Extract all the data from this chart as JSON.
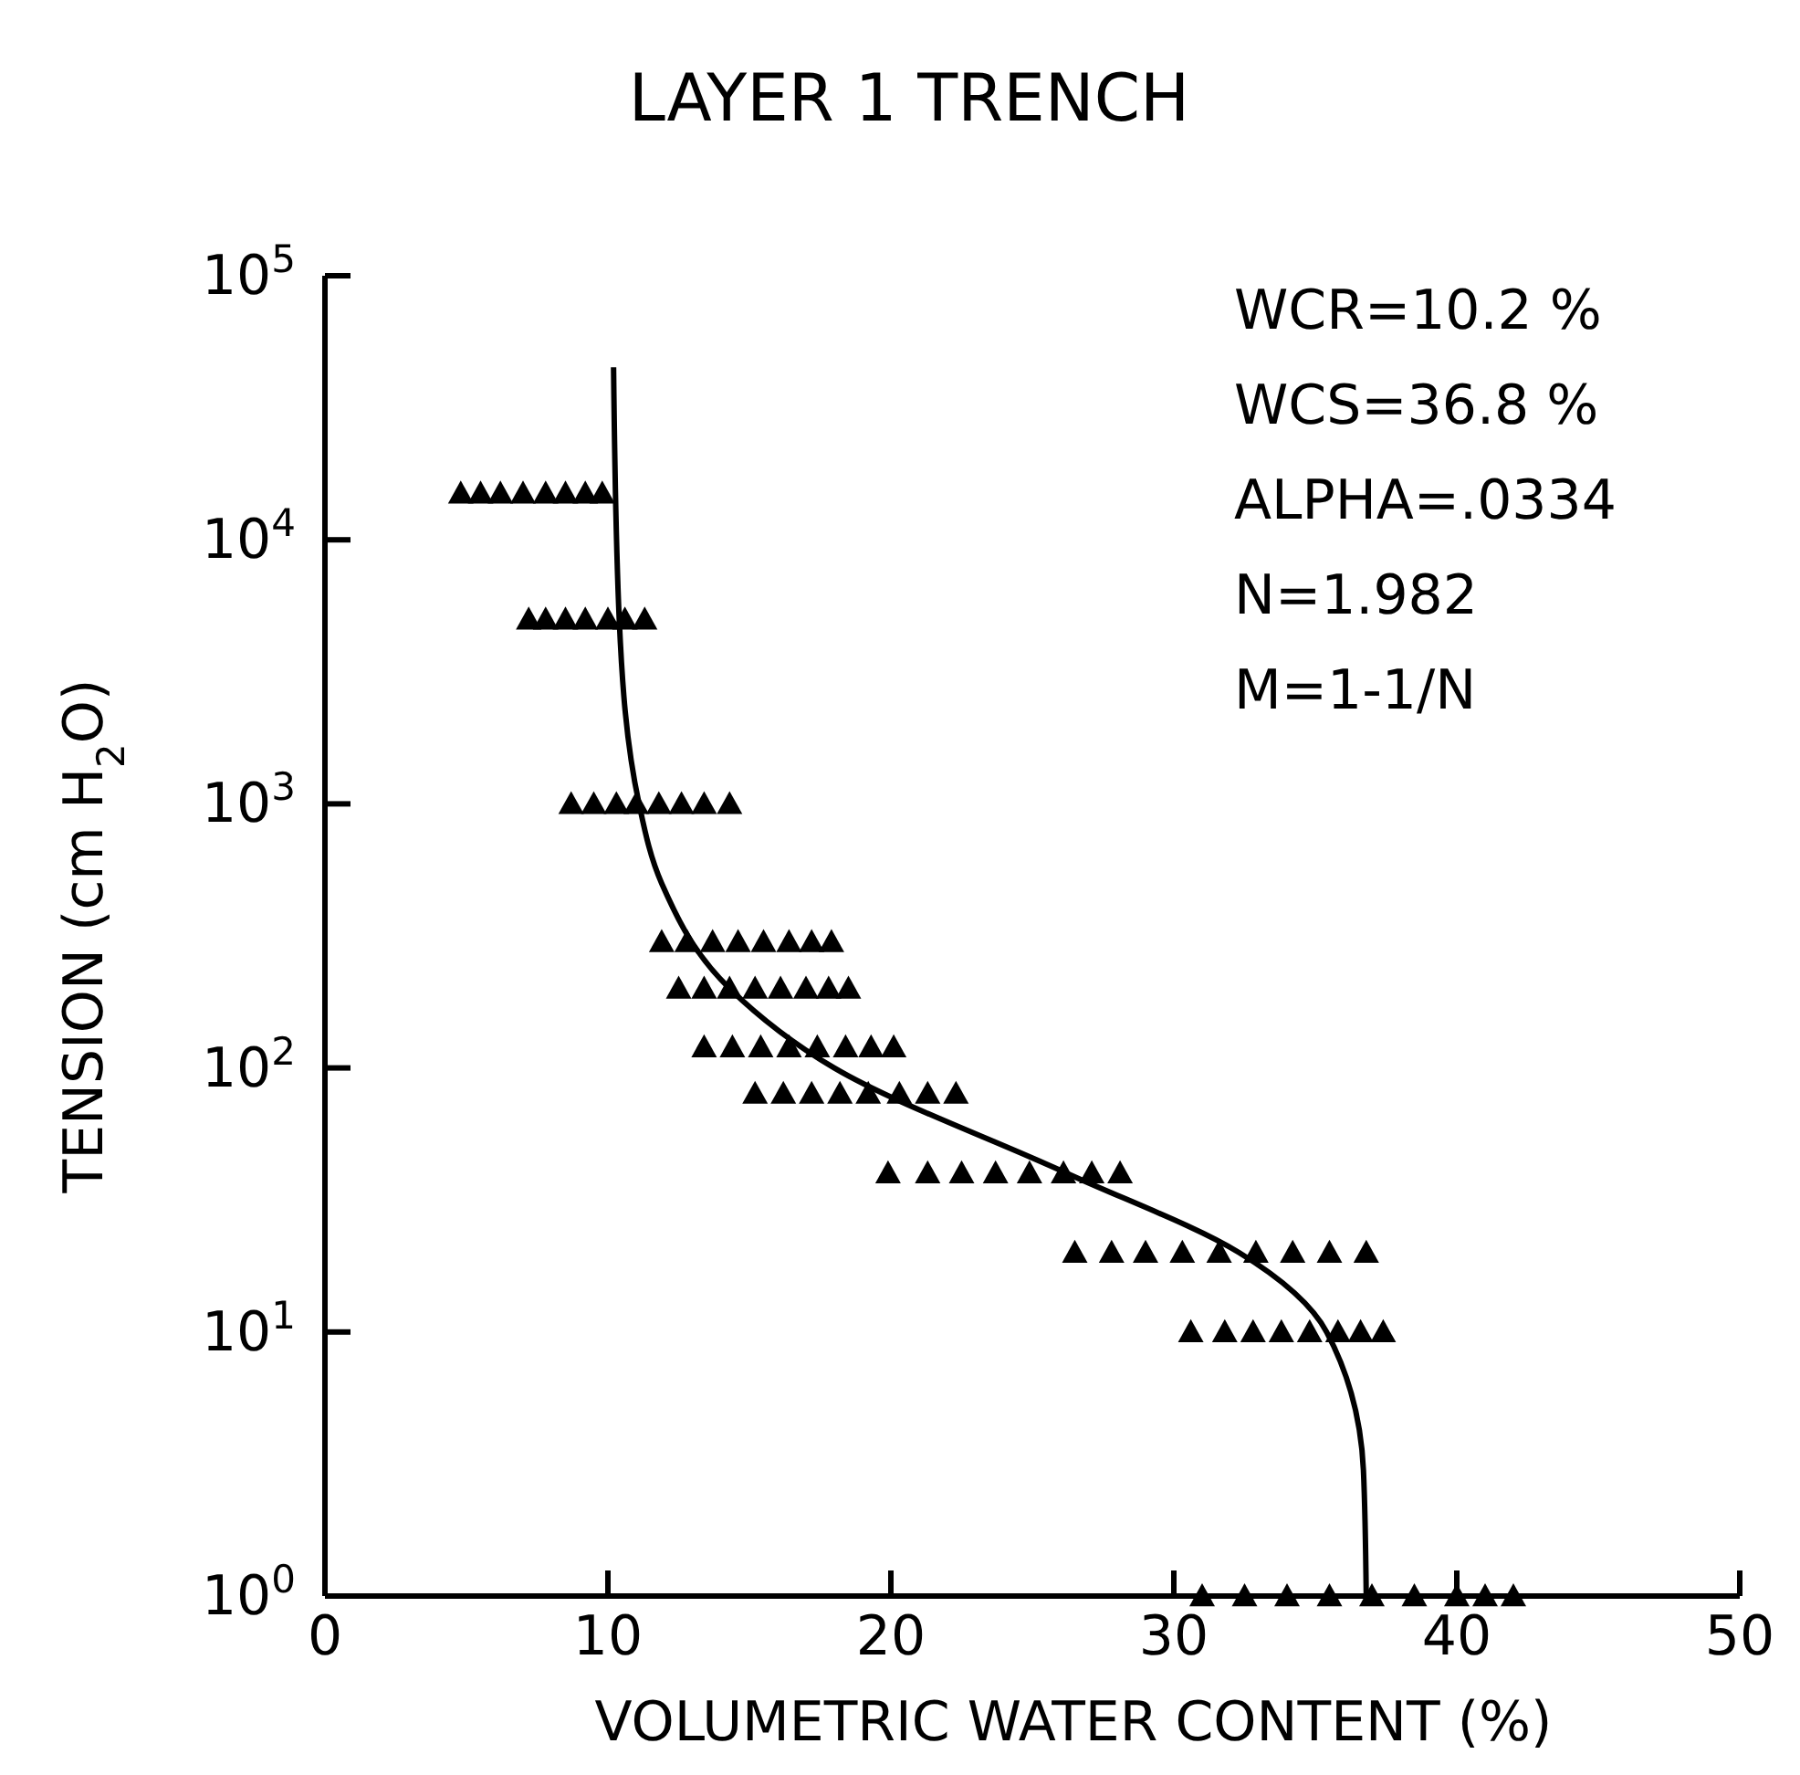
{
  "chart_data": {
    "type": "scatter",
    "title": "LAYER 1 TRENCH",
    "xlabel": "VOLUMETRIC WATER CONTENT (%)",
    "ylabel": "TENSION (cm H$_{2}$O)",
    "log": "y",
    "grid": false,
    "marker": "triangle",
    "xlim": [
      0,
      50
    ],
    "xticks": [
      0,
      10,
      20,
      30,
      40,
      50
    ],
    "ylim": [
      1,
      100000
    ],
    "yticks": [
      {
        "value": 1,
        "label": "10$^{0}$"
      },
      {
        "value": 10,
        "label": "10$^{1}$"
      },
      {
        "value": 100,
        "label": "10$^{2}$"
      },
      {
        "value": 1000,
        "label": "10$^{3}$"
      },
      {
        "value": 10000,
        "label": "10$^{4}$"
      },
      {
        "value": 100000,
        "label": "10$^{5}$"
      }
    ],
    "annotations": [
      "WCR=10.2 %",
      "WCS=36.8 %",
      "ALPHA=.0334",
      "N=1.982",
      "M=1-1/N"
    ],
    "series": [
      {
        "color": "#000000",
        "x": [
          4.8,
          5.5,
          6.2,
          7,
          7.8,
          8.5,
          9.2,
          9.8,
          7.2,
          7.8,
          8.5,
          9.2,
          10,
          10.6,
          11.3,
          8.7,
          9.5,
          10.3,
          11,
          11.8,
          12.6,
          13.4,
          14.3,
          11.9,
          12.8,
          13.7,
          14.6,
          15.5,
          16.4,
          17.2,
          17.9,
          12.5,
          13.4,
          14.3,
          15.2,
          16.1,
          17,
          17.8,
          18.5,
          13.4,
          14.4,
          15.4,
          16.4,
          17.4,
          18.4,
          19.3,
          20.1,
          15.2,
          16.2,
          17.2,
          18.2,
          19.2,
          20.3,
          21.3,
          22.3,
          19.9,
          21.3,
          22.5,
          23.7,
          24.9,
          26.1,
          27.1,
          28.1,
          26.5,
          27.8,
          29,
          30.3,
          31.6,
          32.9,
          34.2,
          35.5,
          36.8,
          30.6,
          31.8,
          32.8,
          33.8,
          34.8,
          35.8,
          36.6,
          37.4,
          31,
          32.5,
          34,
          35.5,
          37,
          38.5,
          40,
          41,
          42
        ],
        "values": [
          15000,
          15000,
          15000,
          15000,
          15000,
          15000,
          15000,
          15000,
          5000,
          5000,
          5000,
          5000,
          5000,
          5000,
          5000,
          1000,
          1000,
          1000,
          1000,
          1000,
          1000,
          1000,
          1000,
          300,
          300,
          300,
          300,
          300,
          300,
          300,
          300,
          200,
          200,
          200,
          200,
          200,
          200,
          200,
          200,
          120,
          120,
          120,
          120,
          120,
          120,
          120,
          120,
          80,
          80,
          80,
          80,
          80,
          80,
          80,
          80,
          40,
          40,
          40,
          40,
          40,
          40,
          40,
          40,
          20,
          20,
          20,
          20,
          20,
          20,
          20,
          20,
          20,
          10,
          10,
          10,
          10,
          10,
          10,
          10,
          10,
          1,
          1,
          1,
          1,
          1,
          1,
          1,
          1,
          1
        ]
      },
      {
        "type": "line",
        "color": "#000000",
        "line_style": "solid",
        "marker": "none",
        "x": [
          36.8,
          36.7,
          35.4,
          32.3,
          26.2,
          18,
          14.3,
          11.9,
          11.1,
          10.4,
          10.2
        ],
        "values": [
          1,
          3,
          10,
          20,
          40,
          100,
          200,
          500,
          1000,
          5000,
          45000
        ]
      }
    ]
  }
}
